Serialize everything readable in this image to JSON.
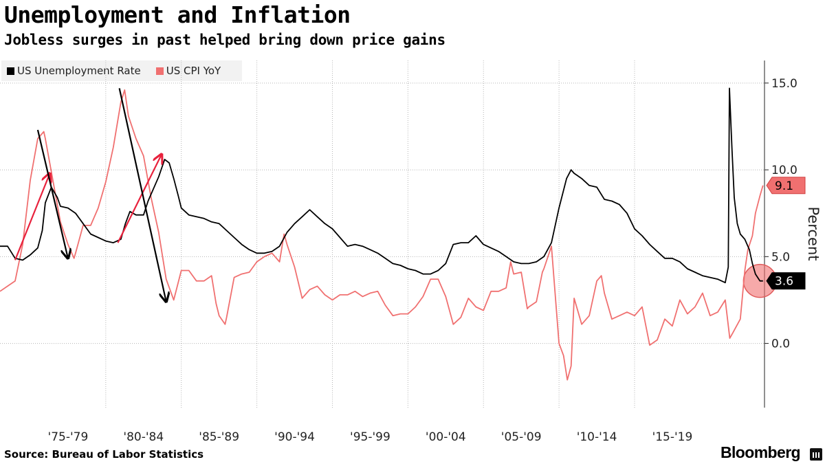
{
  "header": {
    "title": "Unemployment and Inflation",
    "subtitle": "Jobless surges in past helped bring down price gains"
  },
  "footer": {
    "source": "Source: Bureau of Labor Statistics",
    "brand": "Bloomberg"
  },
  "icons": {
    "brand_icon": "bloomberg-terminal-icon"
  },
  "chart_data": {
    "type": "line",
    "title": "Unemployment and Inflation",
    "subtitle": "Jobless surges in past helped bring down price gains",
    "ylabel": "Percent",
    "xlabel": "",
    "xlim": [
      1972.0,
      2022.6
    ],
    "ylim": [
      -3.7,
      16.3
    ],
    "y_ticks": [
      0.0,
      5.0,
      10.0,
      15.0
    ],
    "y_tick_labels": [
      "0.0",
      "5.0",
      "10.0",
      "15.0"
    ],
    "x_tick_positions": [
      1976.5,
      1981.5,
      1986.5,
      1991.5,
      1996.5,
      2001.5,
      2006.5,
      2011.5,
      2016.5
    ],
    "x_tick_labels": [
      "'75-'79",
      "'80-'84",
      "'85-'89",
      "'90-'94",
      "'95-'99",
      "'00-'04",
      "'05-'09",
      "'10-'14",
      "'15-'19"
    ],
    "grid": true,
    "legend_position": "top-left",
    "series": [
      {
        "name": "US Unemployment Rate",
        "color": "#000000",
        "last_value_label": "3.6",
        "points": [
          [
            1972.0,
            5.6
          ],
          [
            1972.5,
            5.6
          ],
          [
            1973.0,
            4.9
          ],
          [
            1973.5,
            4.8
          ],
          [
            1974.0,
            5.1
          ],
          [
            1974.5,
            5.5
          ],
          [
            1974.8,
            6.5
          ],
          [
            1975.0,
            8.1
          ],
          [
            1975.4,
            9.0
          ],
          [
            1975.8,
            8.4
          ],
          [
            1976.0,
            7.9
          ],
          [
            1976.5,
            7.8
          ],
          [
            1977.0,
            7.5
          ],
          [
            1977.5,
            6.9
          ],
          [
            1978.0,
            6.3
          ],
          [
            1978.5,
            6.1
          ],
          [
            1979.0,
            5.9
          ],
          [
            1979.5,
            5.8
          ],
          [
            1980.0,
            6.0
          ],
          [
            1980.3,
            6.9
          ],
          [
            1980.6,
            7.6
          ],
          [
            1981.0,
            7.4
          ],
          [
            1981.5,
            7.4
          ],
          [
            1981.8,
            8.2
          ],
          [
            1982.0,
            8.6
          ],
          [
            1982.5,
            9.6
          ],
          [
            1982.9,
            10.6
          ],
          [
            1983.2,
            10.4
          ],
          [
            1983.5,
            9.5
          ],
          [
            1983.8,
            8.5
          ],
          [
            1984.0,
            7.8
          ],
          [
            1984.5,
            7.4
          ],
          [
            1985.0,
            7.3
          ],
          [
            1985.5,
            7.2
          ],
          [
            1986.0,
            7.0
          ],
          [
            1986.5,
            6.9
          ],
          [
            1987.0,
            6.5
          ],
          [
            1987.5,
            6.1
          ],
          [
            1988.0,
            5.7
          ],
          [
            1988.5,
            5.4
          ],
          [
            1989.0,
            5.2
          ],
          [
            1989.5,
            5.2
          ],
          [
            1990.0,
            5.3
          ],
          [
            1990.5,
            5.6
          ],
          [
            1991.0,
            6.4
          ],
          [
            1991.5,
            6.9
          ],
          [
            1992.0,
            7.3
          ],
          [
            1992.5,
            7.7
          ],
          [
            1993.0,
            7.3
          ],
          [
            1993.5,
            6.9
          ],
          [
            1994.0,
            6.6
          ],
          [
            1994.5,
            6.1
          ],
          [
            1995.0,
            5.6
          ],
          [
            1995.5,
            5.7
          ],
          [
            1996.0,
            5.6
          ],
          [
            1996.5,
            5.4
          ],
          [
            1997.0,
            5.2
          ],
          [
            1997.5,
            4.9
          ],
          [
            1998.0,
            4.6
          ],
          [
            1998.5,
            4.5
          ],
          [
            1999.0,
            4.3
          ],
          [
            1999.5,
            4.2
          ],
          [
            2000.0,
            4.0
          ],
          [
            2000.5,
            4.0
          ],
          [
            2001.0,
            4.2
          ],
          [
            2001.5,
            4.6
          ],
          [
            2002.0,
            5.7
          ],
          [
            2002.5,
            5.8
          ],
          [
            2003.0,
            5.8
          ],
          [
            2003.5,
            6.2
          ],
          [
            2004.0,
            5.7
          ],
          [
            2004.5,
            5.5
          ],
          [
            2005.0,
            5.3
          ],
          [
            2005.5,
            5.0
          ],
          [
            2006.0,
            4.7
          ],
          [
            2006.5,
            4.6
          ],
          [
            2007.0,
            4.6
          ],
          [
            2007.5,
            4.7
          ],
          [
            2008.0,
            5.0
          ],
          [
            2008.5,
            5.8
          ],
          [
            2009.0,
            7.8
          ],
          [
            2009.5,
            9.5
          ],
          [
            2009.8,
            10.0
          ],
          [
            2010.0,
            9.8
          ],
          [
            2010.5,
            9.5
          ],
          [
            2011.0,
            9.1
          ],
          [
            2011.5,
            9.0
          ],
          [
            2012.0,
            8.3
          ],
          [
            2012.5,
            8.2
          ],
          [
            2013.0,
            8.0
          ],
          [
            2013.5,
            7.5
          ],
          [
            2014.0,
            6.6
          ],
          [
            2014.5,
            6.2
          ],
          [
            2015.0,
            5.7
          ],
          [
            2015.5,
            5.3
          ],
          [
            2016.0,
            4.9
          ],
          [
            2016.5,
            4.9
          ],
          [
            2017.0,
            4.7
          ],
          [
            2017.5,
            4.3
          ],
          [
            2018.0,
            4.1
          ],
          [
            2018.5,
            3.9
          ],
          [
            2019.0,
            3.8
          ],
          [
            2019.5,
            3.7
          ],
          [
            2020.0,
            3.5
          ],
          [
            2020.2,
            4.4
          ],
          [
            2020.28,
            14.7
          ],
          [
            2020.45,
            11.1
          ],
          [
            2020.6,
            8.4
          ],
          [
            2020.8,
            6.9
          ],
          [
            2021.0,
            6.3
          ],
          [
            2021.3,
            6.0
          ],
          [
            2021.6,
            5.4
          ],
          [
            2021.8,
            4.6
          ],
          [
            2022.0,
            4.0
          ],
          [
            2022.3,
            3.6
          ],
          [
            2022.5,
            3.6
          ]
        ]
      },
      {
        "name": "US CPI YoY",
        "color": "#f07070",
        "last_value_label": "9.1",
        "points": [
          [
            1972.0,
            3.0
          ],
          [
            1972.5,
            3.3
          ],
          [
            1973.0,
            3.6
          ],
          [
            1973.5,
            5.7
          ],
          [
            1974.0,
            9.4
          ],
          [
            1974.5,
            11.8
          ],
          [
            1974.9,
            12.2
          ],
          [
            1975.0,
            11.8
          ],
          [
            1975.5,
            9.4
          ],
          [
            1976.0,
            7.0
          ],
          [
            1976.5,
            5.7
          ],
          [
            1976.9,
            4.9
          ],
          [
            1977.0,
            5.2
          ],
          [
            1977.5,
            6.8
          ],
          [
            1978.0,
            6.8
          ],
          [
            1978.5,
            7.8
          ],
          [
            1979.0,
            9.3
          ],
          [
            1979.5,
            11.3
          ],
          [
            1980.0,
            13.9
          ],
          [
            1980.25,
            14.6
          ],
          [
            1980.5,
            13.1
          ],
          [
            1981.0,
            11.8
          ],
          [
            1981.5,
            10.8
          ],
          [
            1982.0,
            8.4
          ],
          [
            1982.5,
            6.4
          ],
          [
            1983.0,
            3.7
          ],
          [
            1983.5,
            2.5
          ],
          [
            1984.0,
            4.2
          ],
          [
            1984.5,
            4.2
          ],
          [
            1985.0,
            3.6
          ],
          [
            1985.5,
            3.6
          ],
          [
            1986.0,
            3.9
          ],
          [
            1986.3,
            2.3
          ],
          [
            1986.5,
            1.6
          ],
          [
            1986.9,
            1.1
          ],
          [
            1987.0,
            1.5
          ],
          [
            1987.5,
            3.8
          ],
          [
            1988.0,
            4.0
          ],
          [
            1988.5,
            4.1
          ],
          [
            1989.0,
            4.7
          ],
          [
            1989.5,
            5.0
          ],
          [
            1990.0,
            5.2
          ],
          [
            1990.5,
            4.7
          ],
          [
            1990.8,
            6.3
          ],
          [
            1991.0,
            5.7
          ],
          [
            1991.5,
            4.4
          ],
          [
            1992.0,
            2.6
          ],
          [
            1992.5,
            3.1
          ],
          [
            1993.0,
            3.3
          ],
          [
            1993.5,
            2.8
          ],
          [
            1994.0,
            2.5
          ],
          [
            1994.5,
            2.8
          ],
          [
            1995.0,
            2.8
          ],
          [
            1995.5,
            3.0
          ],
          [
            1996.0,
            2.7
          ],
          [
            1996.5,
            2.9
          ],
          [
            1997.0,
            3.0
          ],
          [
            1997.5,
            2.2
          ],
          [
            1998.0,
            1.6
          ],
          [
            1998.5,
            1.7
          ],
          [
            1999.0,
            1.7
          ],
          [
            1999.5,
            2.1
          ],
          [
            2000.0,
            2.7
          ],
          [
            2000.5,
            3.7
          ],
          [
            2001.0,
            3.7
          ],
          [
            2001.5,
            2.7
          ],
          [
            2002.0,
            1.1
          ],
          [
            2002.5,
            1.5
          ],
          [
            2003.0,
            2.6
          ],
          [
            2003.5,
            2.1
          ],
          [
            2004.0,
            1.9
          ],
          [
            2004.5,
            3.0
          ],
          [
            2005.0,
            3.0
          ],
          [
            2005.5,
            3.2
          ],
          [
            2005.8,
            4.7
          ],
          [
            2006.0,
            4.0
          ],
          [
            2006.5,
            4.1
          ],
          [
            2006.9,
            2.0
          ],
          [
            2007.0,
            2.1
          ],
          [
            2007.5,
            2.4
          ],
          [
            2007.9,
            4.1
          ],
          [
            2008.0,
            4.3
          ],
          [
            2008.5,
            5.6
          ],
          [
            2009.0,
            0.0
          ],
          [
            2009.3,
            -0.7
          ],
          [
            2009.55,
            -2.1
          ],
          [
            2009.8,
            -1.3
          ],
          [
            2010.0,
            2.6
          ],
          [
            2010.5,
            1.1
          ],
          [
            2011.0,
            1.6
          ],
          [
            2011.5,
            3.6
          ],
          [
            2011.8,
            3.9
          ],
          [
            2012.0,
            2.9
          ],
          [
            2012.5,
            1.4
          ],
          [
            2013.0,
            1.6
          ],
          [
            2013.5,
            1.8
          ],
          [
            2014.0,
            1.6
          ],
          [
            2014.5,
            2.1
          ],
          [
            2015.0,
            -0.1
          ],
          [
            2015.5,
            0.2
          ],
          [
            2016.0,
            1.4
          ],
          [
            2016.5,
            1.0
          ],
          [
            2017.0,
            2.5
          ],
          [
            2017.5,
            1.7
          ],
          [
            2018.0,
            2.1
          ],
          [
            2018.5,
            2.9
          ],
          [
            2019.0,
            1.6
          ],
          [
            2019.5,
            1.8
          ],
          [
            2020.0,
            2.5
          ],
          [
            2020.3,
            0.3
          ],
          [
            2020.5,
            0.6
          ],
          [
            2021.0,
            1.4
          ],
          [
            2021.3,
            4.2
          ],
          [
            2021.5,
            5.4
          ],
          [
            2021.8,
            6.2
          ],
          [
            2022.0,
            7.5
          ],
          [
            2022.3,
            8.5
          ],
          [
            2022.5,
            9.1
          ]
        ]
      }
    ],
    "annotations": {
      "arrows": [
        {
          "color": "#e8213c",
          "from": [
            1973.0,
            4.8
          ],
          "to": [
            1975.3,
            9.8
          ]
        },
        {
          "color": "#000000",
          "from": [
            1974.5,
            12.3
          ],
          "to": [
            1976.5,
            4.9
          ]
        },
        {
          "color": "#e8213c",
          "from": [
            1979.8,
            5.8
          ],
          "to": [
            1982.7,
            10.9
          ]
        },
        {
          "color": "#000000",
          "from": [
            1979.9,
            14.7
          ],
          "to": [
            1983.0,
            2.4
          ]
        }
      ],
      "highlight_circle": {
        "x": 2022.3,
        "y": 3.6,
        "color": "#f07070"
      }
    }
  }
}
